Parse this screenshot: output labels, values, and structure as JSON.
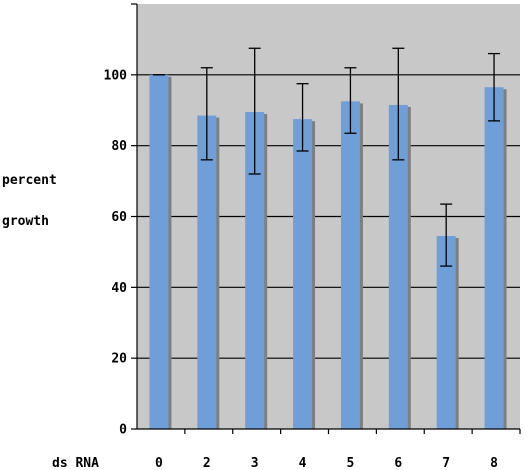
{
  "chart_data": {
    "type": "bar",
    "title": "",
    "xlabel": "ds RNA",
    "ylabel_lines": [
      "percent",
      "growth"
    ],
    "categories": [
      "0",
      "2",
      "3",
      "4",
      "5",
      "6",
      "7",
      "8"
    ],
    "values": [
      100,
      88.5,
      89.5,
      87.5,
      92.5,
      91.5,
      54.5,
      96.5
    ],
    "error_low": [
      100,
      76,
      72,
      78.5,
      83.5,
      76,
      46,
      87
    ],
    "error_high": [
      100,
      102,
      107.5,
      97.5,
      102,
      107.5,
      63.5,
      106
    ],
    "ylim": [
      0,
      120
    ],
    "yticks": [
      "0",
      "20",
      "40",
      "60",
      "80",
      "100"
    ],
    "grid": true,
    "legend": "none",
    "colors": {
      "plot_bg": "#c8c8c8",
      "bar": "#6f9fd8",
      "bar_shadow": "#7f7f7f",
      "grid": "#000000",
      "error": "#000000"
    }
  }
}
